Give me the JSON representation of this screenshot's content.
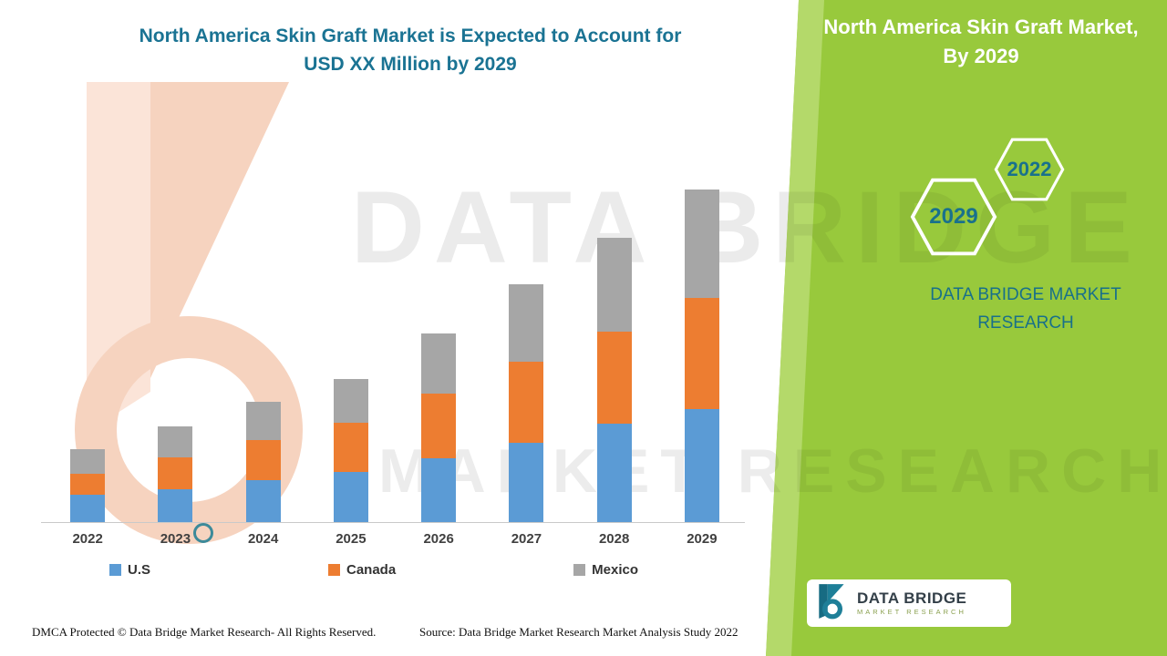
{
  "title": {
    "line1": "North America Skin Graft Market is Expected to Account for",
    "line2": "USD XX Million by 2029"
  },
  "watermark": {
    "line1": "DATA BRIDGE",
    "line2": "MARKET RESEARCH"
  },
  "side_panel": {
    "bg_color": "#98c93c",
    "accent_color": "#19718c",
    "heading_line1": "North America Skin Graft Market,",
    "heading_line2": "By 2029",
    "hexagons": [
      {
        "label": "2029"
      },
      {
        "label": "2022"
      }
    ],
    "brand_line1": "DATA BRIDGE MARKET",
    "brand_line2": "RESEARCH"
  },
  "logo_badge": {
    "name": "DATA BRIDGE",
    "sub": "MARKET RESEARCH"
  },
  "footer": {
    "dmca": "DMCA Protected © Data Bridge Market Research- All Rights Reserved.",
    "source": "Source: Data Bridge Market Research Market Analysis Study 2022"
  },
  "chart_data": {
    "type": "bar",
    "stacked": true,
    "title": "North America Skin Graft Market is Expected to Account for USD XX Million by 2029",
    "xlabel": "",
    "ylabel": "",
    "grid": false,
    "legend_position": "bottom",
    "value_note": "No value axis shown; values are relative units estimated from bar heights (actual figures undisclosed as 'USD XX Million')",
    "categories": [
      "2022",
      "2023",
      "2024",
      "2025",
      "2026",
      "2027",
      "2028",
      "2029"
    ],
    "series": [
      {
        "name": "U.S",
        "color": "#5b9bd5",
        "values": [
          30,
          36,
          46,
          55,
          70,
          87,
          107,
          123
        ]
      },
      {
        "name": "Canada",
        "color": "#ed7d31",
        "values": [
          23,
          35,
          44,
          53,
          70,
          88,
          101,
          122
        ]
      },
      {
        "name": "Mexico",
        "color": "#a6a6a6",
        "values": [
          27,
          33,
          41,
          48,
          66,
          85,
          102,
          118
        ]
      }
    ]
  }
}
